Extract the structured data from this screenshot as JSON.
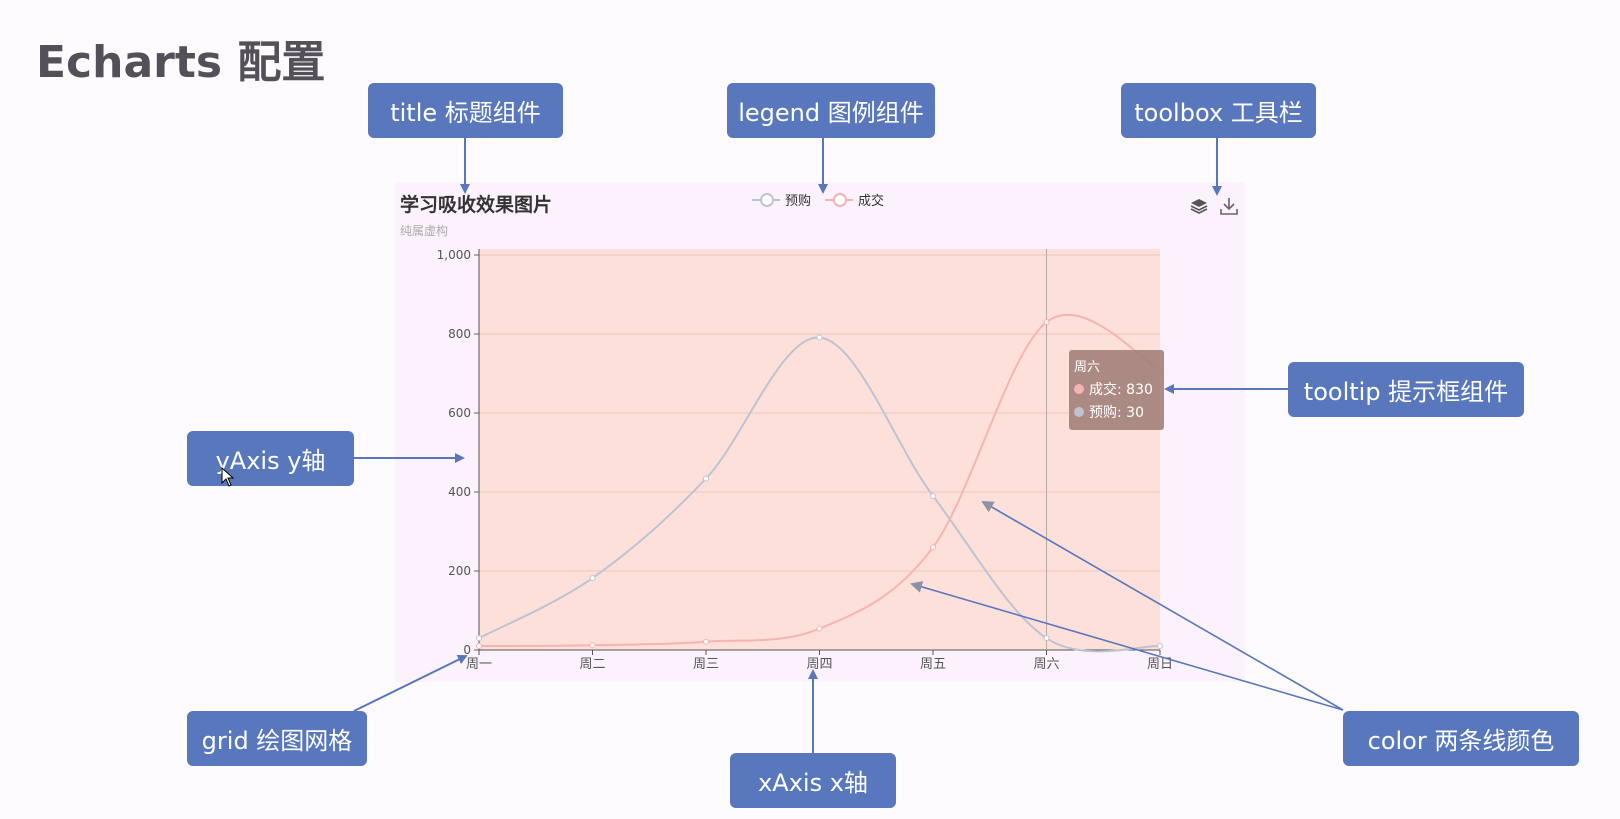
{
  "page": {
    "title": "Echarts 配置"
  },
  "callouts": {
    "title": "title 标题组件",
    "legend": "legend 图例组件",
    "toolbox": "toolbox 工具栏",
    "tooltip": "tooltip 提示框组件",
    "yaxis": "yAxis y轴",
    "grid": "grid 绘图网格",
    "xaxis": "xAxis x轴",
    "color": "color 两条线颜色"
  },
  "toolbox": {
    "icons": [
      "stack-icon",
      "download-icon"
    ]
  },
  "tooltip": {
    "title": "周六",
    "rows": [
      {
        "text": "成交: 830",
        "color": "#f8b2b4"
      },
      {
        "text": "预购: 30",
        "color": "#bec4cf"
      }
    ]
  },
  "colors": {
    "callout": "#5877bd",
    "grid_bg": "#fde0da",
    "panel_bg": "#fcf2fd",
    "arrow": "#5877bd"
  },
  "chart_data": {
    "type": "line",
    "title": "学习吸收效果图片",
    "subtitle": "纯属虚构",
    "categories": [
      "周一",
      "周二",
      "周三",
      "周四",
      "周五",
      "周六",
      "周日"
    ],
    "ylim": [
      0,
      1000
    ],
    "yticks": [
      0,
      200,
      400,
      600,
      800,
      1000
    ],
    "ytick_labels": [
      "0",
      "200",
      "400",
      "600",
      "800",
      "1,000"
    ],
    "grid": true,
    "legend_position": "top-center",
    "series": [
      {
        "name": "预购",
        "values": [
          30,
          182,
          434,
          791,
          390,
          30,
          10
        ],
        "color": "#bec4cf"
      },
      {
        "name": "成交",
        "values": [
          10,
          12,
          21,
          54,
          260,
          830,
          710
        ],
        "color": "#f8b2b4"
      }
    ],
    "highlight_category": "周六"
  }
}
